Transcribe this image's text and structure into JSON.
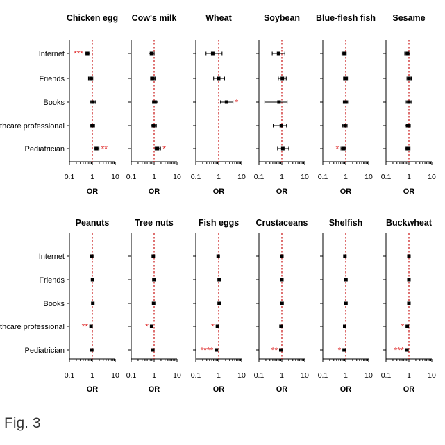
{
  "figure": {
    "caption": "Fig. 3"
  },
  "colors": {
    "axis": "#000000",
    "reference_line": "#cc2222",
    "marker": "#000000",
    "significance": "#e03030"
  },
  "chart_data": [
    {
      "type": "scatter",
      "title": "Chicken egg",
      "xlabel": "OR",
      "ylabel": "",
      "x_scale": "log",
      "xlim": [
        0.1,
        10
      ],
      "tick_labels": [
        "0.1",
        "1",
        "10"
      ],
      "reference_line": 1,
      "categories": [
        "Internet",
        "Friends",
        "Books",
        "Healthcare professional",
        "Pediatrician"
      ],
      "points": [
        {
          "category": "Internet",
          "or": 0.62,
          "ci": [
            0.5,
            0.78
          ],
          "significance": "***",
          "sig_side": "left"
        },
        {
          "category": "Friends",
          "or": 0.85,
          "ci": [
            0.68,
            1.05
          ],
          "significance": ""
        },
        {
          "category": "Books",
          "or": 1.05,
          "ci": [
            0.82,
            1.35
          ],
          "significance": ""
        },
        {
          "category": "Healthcare professional",
          "or": 1.0,
          "ci": [
            0.8,
            1.25
          ],
          "significance": ""
        },
        {
          "category": "Pediatrician",
          "or": 1.55,
          "ci": [
            1.25,
            1.95
          ],
          "significance": "**",
          "sig_side": "right"
        }
      ]
    },
    {
      "type": "scatter",
      "title": "Cow's milk",
      "xlabel": "OR",
      "ylabel": "",
      "x_scale": "log",
      "xlim": [
        0.1,
        10
      ],
      "tick_labels": [
        "0.1",
        "1",
        "10"
      ],
      "reference_line": 1,
      "categories": [
        "Internet",
        "Friends",
        "Books",
        "Healthcare professional",
        "Pediatrician"
      ],
      "points": [
        {
          "category": "Internet",
          "or": 0.78,
          "ci": [
            0.6,
            1.0
          ],
          "significance": ""
        },
        {
          "category": "Friends",
          "or": 0.88,
          "ci": [
            0.7,
            1.1
          ],
          "significance": ""
        },
        {
          "category": "Books",
          "or": 1.1,
          "ci": [
            0.85,
            1.45
          ],
          "significance": ""
        },
        {
          "category": "Healthcare professional",
          "or": 0.95,
          "ci": [
            0.75,
            1.25
          ],
          "significance": ""
        },
        {
          "category": "Pediatrician",
          "or": 1.4,
          "ci": [
            1.1,
            1.9
          ],
          "significance": "*",
          "sig_side": "right"
        }
      ]
    },
    {
      "type": "scatter",
      "title": "Wheat",
      "xlabel": "OR",
      "ylabel": "",
      "x_scale": "log",
      "xlim": [
        0.1,
        10
      ],
      "tick_labels": [
        "0.1",
        "1",
        "10"
      ],
      "reference_line": 1,
      "categories": [
        "Internet",
        "Friends",
        "Books",
        "Healthcare professional",
        "Pediatrician"
      ],
      "points": [
        {
          "category": "Internet",
          "or": 0.55,
          "ci": [
            0.28,
            1.4
          ],
          "significance": ""
        },
        {
          "category": "Friends",
          "or": 1.0,
          "ci": [
            0.6,
            1.8
          ],
          "significance": ""
        },
        {
          "category": "Books",
          "or": 2.2,
          "ci": [
            1.2,
            4.2
          ],
          "significance": "*",
          "sig_side": "right"
        }
      ]
    },
    {
      "type": "scatter",
      "title": "Soybean",
      "xlabel": "OR",
      "ylabel": "",
      "x_scale": "log",
      "xlim": [
        0.1,
        10
      ],
      "tick_labels": [
        "0.1",
        "1",
        "10"
      ],
      "reference_line": 1,
      "categories": [
        "Internet",
        "Friends",
        "Books",
        "Healthcare professional",
        "Pediatrician"
      ],
      "points": [
        {
          "category": "Internet",
          "or": 0.72,
          "ci": [
            0.38,
            1.35
          ],
          "significance": ""
        },
        {
          "category": "Friends",
          "or": 1.05,
          "ci": [
            0.7,
            1.55
          ],
          "significance": ""
        },
        {
          "category": "Books",
          "or": 0.75,
          "ci": [
            0.18,
            1.7
          ],
          "significance": ""
        },
        {
          "category": "Healthcare professional",
          "or": 0.95,
          "ci": [
            0.42,
            1.6
          ],
          "significance": ""
        },
        {
          "category": "Pediatrician",
          "or": 1.1,
          "ci": [
            0.65,
            2.0
          ],
          "significance": ""
        }
      ]
    },
    {
      "type": "scatter",
      "title": "Blue-flesh fish",
      "xlabel": "OR",
      "ylabel": "",
      "x_scale": "log",
      "xlim": [
        0.1,
        10
      ],
      "tick_labels": [
        "0.1",
        "1",
        "10"
      ],
      "reference_line": 1,
      "categories": [
        "Internet",
        "Friends",
        "Books",
        "Healthcare professional",
        "Pediatrician"
      ],
      "points": [
        {
          "category": "Internet",
          "or": 0.85,
          "ci": [
            0.68,
            1.05
          ],
          "significance": ""
        },
        {
          "category": "Friends",
          "or": 0.98,
          "ci": [
            0.8,
            1.2
          ],
          "significance": ""
        },
        {
          "category": "Books",
          "or": 0.98,
          "ci": [
            0.78,
            1.22
          ],
          "significance": ""
        },
        {
          "category": "Healthcare professional",
          "or": 0.92,
          "ci": [
            0.72,
            1.15
          ],
          "significance": ""
        },
        {
          "category": "Pediatrician",
          "or": 0.78,
          "ci": [
            0.62,
            0.95
          ],
          "significance": "*",
          "sig_side": "left"
        }
      ]
    },
    {
      "type": "scatter",
      "title": "Sesame",
      "xlabel": "OR",
      "ylabel": "",
      "x_scale": "log",
      "xlim": [
        0.1,
        10
      ],
      "tick_labels": [
        "0.1",
        "1",
        "10"
      ],
      "reference_line": 1,
      "categories": [
        "Internet",
        "Friends",
        "Books",
        "Healthcare professional",
        "Pediatrician"
      ],
      "points": [
        {
          "category": "Internet",
          "or": 0.85,
          "ci": [
            0.66,
            1.08
          ],
          "significance": ""
        },
        {
          "category": "Friends",
          "or": 1.02,
          "ci": [
            0.82,
            1.28
          ],
          "significance": ""
        },
        {
          "category": "Books",
          "or": 0.98,
          "ci": [
            0.76,
            1.25
          ],
          "significance": ""
        },
        {
          "category": "Healthcare professional",
          "or": 0.9,
          "ci": [
            0.7,
            1.15
          ],
          "significance": ""
        },
        {
          "category": "Pediatrician",
          "or": 0.9,
          "ci": [
            0.72,
            1.12
          ],
          "significance": ""
        }
      ]
    },
    {
      "type": "scatter",
      "title": "Peanuts",
      "xlabel": "OR",
      "ylabel": "",
      "x_scale": "log",
      "xlim": [
        0.1,
        10
      ],
      "tick_labels": [
        "0.1",
        "1",
        "10"
      ],
      "reference_line": 1,
      "categories": [
        "Internet",
        "Friends",
        "Books",
        "Healthcare professional",
        "Pediatrician"
      ],
      "points": [
        {
          "category": "Internet",
          "or": 0.95,
          "ci": [
            0.88,
            1.03
          ],
          "significance": ""
        },
        {
          "category": "Friends",
          "or": 1.02,
          "ci": [
            0.95,
            1.1
          ],
          "significance": ""
        },
        {
          "category": "Books",
          "or": 1.05,
          "ci": [
            0.97,
            1.14
          ],
          "significance": ""
        },
        {
          "category": "Healthcare professional",
          "or": 0.88,
          "ci": [
            0.81,
            0.95
          ],
          "significance": "**",
          "sig_side": "left"
        },
        {
          "category": "Pediatrician",
          "or": 0.95,
          "ci": [
            0.88,
            1.03
          ],
          "significance": ""
        }
      ]
    },
    {
      "type": "scatter",
      "title": "Tree nuts",
      "xlabel": "OR",
      "ylabel": "",
      "x_scale": "log",
      "xlim": [
        0.1,
        10
      ],
      "tick_labels": [
        "0.1",
        "1",
        "10"
      ],
      "reference_line": 1,
      "categories": [
        "Internet",
        "Friends",
        "Books",
        "Healthcare professional",
        "Pediatrician"
      ],
      "points": [
        {
          "category": "Internet",
          "or": 0.92,
          "ci": [
            0.84,
            1.01
          ],
          "significance": ""
        },
        {
          "category": "Friends",
          "or": 0.98,
          "ci": [
            0.9,
            1.07
          ],
          "significance": ""
        },
        {
          "category": "Books",
          "or": 0.95,
          "ci": [
            0.87,
            1.04
          ],
          "significance": ""
        },
        {
          "category": "Healthcare professional",
          "or": 0.78,
          "ci": [
            0.7,
            0.87
          ],
          "significance": "*",
          "sig_side": "left"
        },
        {
          "category": "Pediatrician",
          "or": 0.88,
          "ci": [
            0.8,
            0.97
          ],
          "significance": ""
        }
      ]
    },
    {
      "type": "scatter",
      "title": "Fish eggs",
      "xlabel": "OR",
      "ylabel": "",
      "x_scale": "log",
      "xlim": [
        0.1,
        10
      ],
      "tick_labels": [
        "0.1",
        "1",
        "10"
      ],
      "reference_line": 1,
      "categories": [
        "Internet",
        "Friends",
        "Books",
        "Healthcare professional",
        "Pediatrician"
      ],
      "points": [
        {
          "category": "Internet",
          "or": 0.95,
          "ci": [
            0.87,
            1.04
          ],
          "significance": ""
        },
        {
          "category": "Friends",
          "or": 1.05,
          "ci": [
            0.96,
            1.15
          ],
          "significance": ""
        },
        {
          "category": "Books",
          "or": 1.05,
          "ci": [
            0.96,
            1.15
          ],
          "significance": ""
        },
        {
          "category": "Healthcare professional",
          "or": 0.88,
          "ci": [
            0.8,
            0.97
          ],
          "significance": "*",
          "sig_side": "left"
        },
        {
          "category": "Pediatrician",
          "or": 0.8,
          "ci": [
            0.72,
            0.89
          ],
          "significance": "****",
          "sig_side": "left"
        }
      ]
    },
    {
      "type": "scatter",
      "title": "Crustaceans",
      "xlabel": "OR",
      "ylabel": "",
      "x_scale": "log",
      "xlim": [
        0.1,
        10
      ],
      "tick_labels": [
        "0.1",
        "1",
        "10"
      ],
      "reference_line": 1,
      "categories": [
        "Internet",
        "Friends",
        "Books",
        "Healthcare professional",
        "Pediatrician"
      ],
      "points": [
        {
          "category": "Internet",
          "or": 1.0,
          "ci": [
            0.92,
            1.09
          ],
          "significance": ""
        },
        {
          "category": "Friends",
          "or": 1.0,
          "ci": [
            0.92,
            1.09
          ],
          "significance": ""
        },
        {
          "category": "Books",
          "or": 1.02,
          "ci": [
            0.94,
            1.11
          ],
          "significance": ""
        },
        {
          "category": "Healthcare professional",
          "or": 0.92,
          "ci": [
            0.84,
            1.01
          ],
          "significance": ""
        },
        {
          "category": "Pediatrician",
          "or": 0.9,
          "ci": [
            0.82,
            0.99
          ],
          "significance": "**",
          "sig_side": "left"
        }
      ]
    },
    {
      "type": "scatter",
      "title": "Shelfish",
      "xlabel": "OR",
      "ylabel": "",
      "x_scale": "log",
      "xlim": [
        0.1,
        10
      ],
      "tick_labels": [
        "0.1",
        "1",
        "10"
      ],
      "reference_line": 1,
      "categories": [
        "Internet",
        "Friends",
        "Books",
        "Healthcare professional",
        "Pediatrician"
      ],
      "points": [
        {
          "category": "Internet",
          "or": 0.92,
          "ci": [
            0.84,
            1.01
          ],
          "significance": ""
        },
        {
          "category": "Friends",
          "or": 1.02,
          "ci": [
            0.94,
            1.11
          ],
          "significance": ""
        },
        {
          "category": "Books",
          "or": 1.02,
          "ci": [
            0.94,
            1.11
          ],
          "significance": ""
        },
        {
          "category": "Healthcare professional",
          "or": 0.9,
          "ci": [
            0.82,
            0.99
          ],
          "significance": ""
        },
        {
          "category": "Pediatrician",
          "or": 0.85,
          "ci": [
            0.77,
            0.94
          ],
          "significance": "*",
          "sig_side": "left"
        }
      ]
    },
    {
      "type": "scatter",
      "title": "Buckwheat",
      "xlabel": "OR",
      "ylabel": "",
      "x_scale": "log",
      "xlim": [
        0.1,
        10
      ],
      "tick_labels": [
        "0.1",
        "1",
        "10"
      ],
      "reference_line": 1,
      "categories": [
        "Internet",
        "Friends",
        "Books",
        "Healthcare professional",
        "Pediatrician"
      ],
      "points": [
        {
          "category": "Internet",
          "or": 1.0,
          "ci": [
            0.92,
            1.09
          ],
          "significance": ""
        },
        {
          "category": "Friends",
          "or": 1.0,
          "ci": [
            0.92,
            1.09
          ],
          "significance": ""
        },
        {
          "category": "Books",
          "or": 1.0,
          "ci": [
            0.92,
            1.09
          ],
          "significance": ""
        },
        {
          "category": "Healthcare professional",
          "or": 0.85,
          "ci": [
            0.77,
            0.94
          ],
          "significance": "*",
          "sig_side": "left"
        },
        {
          "category": "Pediatrician",
          "or": 0.82,
          "ci": [
            0.74,
            0.91
          ],
          "significance": "***",
          "sig_side": "left"
        }
      ]
    }
  ]
}
